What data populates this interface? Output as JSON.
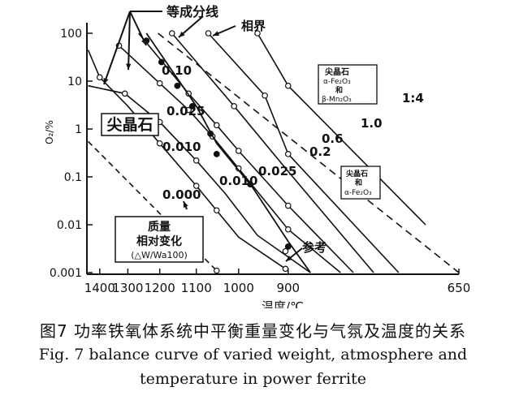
{
  "chart_data": {
    "type": "line",
    "title": "",
    "xlabel": "温度/℃",
    "ylabel": "O₂/%",
    "x_scale": "reciprocal",
    "y_scale": "log",
    "xlim": [
      1450,
      650
    ],
    "ylim": [
      0.001,
      100
    ],
    "grid": false,
    "x_ticks": [
      "1400",
      "1300",
      "1200",
      "1100",
      "1000",
      "900",
      "650"
    ],
    "y_ticks": [
      "0.001",
      "0.01",
      "0.1",
      "1",
      "10",
      "100"
    ],
    "series": [
      {
        "name": "0.000",
        "kind": "iso-weight (dashed)",
        "points": [
          [
            1445,
            0.55
          ],
          [
            1050,
            0.0011
          ]
        ]
      },
      {
        "name": "0.010",
        "kind": "iso-weight",
        "points": [
          [
            1445,
            45
          ],
          [
            1400,
            12
          ],
          [
            1300,
            3
          ],
          [
            1200,
            0.5
          ],
          [
            1100,
            0.065
          ],
          [
            1000,
            0.0055
          ],
          [
            905,
            0.0012
          ]
        ]
      },
      {
        "name": "0.025",
        "kind": "iso-weight",
        "points": [
          [
            1445,
            8
          ],
          [
            1310,
            5.5
          ],
          [
            1200,
            1.4
          ],
          [
            1100,
            0.22
          ],
          [
            1030,
            0.045
          ],
          [
            960,
            0.006
          ],
          [
            860,
            0.001
          ]
        ]
      },
      {
        "name": "0.10",
        "kind": "iso-weight",
        "points": [
          [
            1330,
            55
          ],
          [
            1200,
            9
          ],
          [
            1120,
            2.5
          ],
          [
            1060,
            0.7
          ],
          [
            1000,
            0.15
          ],
          [
            900,
            0.008
          ],
          [
            810,
            0.001
          ]
        ]
      },
      {
        "name": "0.2",
        "kind": "iso-weight",
        "points": [
          [
            1265,
            100
          ],
          [
            1120,
            5.5
          ],
          [
            1050,
            1.2
          ],
          [
            1000,
            0.35
          ],
          [
            900,
            0.025
          ],
          [
            790,
            0.001
          ]
        ]
      },
      {
        "name": "0.6",
        "kind": "iso-weight",
        "points": [
          [
            1165,
            100
          ],
          [
            1010,
            3
          ],
          [
            900,
            0.13
          ],
          [
            760,
            0.001
          ]
        ]
      },
      {
        "name": "1.0",
        "kind": "iso-weight",
        "points": [
          [
            1070,
            100
          ],
          [
            945,
            5
          ],
          [
            900,
            0.3
          ],
          [
            725,
            0.001
          ]
        ]
      },
      {
        "name": "1:4",
        "kind": "iso-weight",
        "points": [
          [
            960,
            100
          ],
          [
            900,
            8
          ],
          [
            690,
            0.01
          ]
        ]
      },
      {
        "name": "相界",
        "kind": "phase boundary (dashed)",
        "points": [
          [
            1205,
            100
          ],
          [
            650,
            0.001
          ]
        ]
      },
      {
        "name": "参考",
        "kind": "phase boundary (solid)",
        "points": [
          [
            1240,
            100
          ],
          [
            1100,
            3
          ],
          [
            1050,
            0.5
          ],
          [
            970,
            0.06
          ],
          [
            900,
            0.0045
          ],
          [
            860,
            0.001
          ]
        ]
      }
    ],
    "annotations": {
      "iso_lines": "等成分线",
      "phase_boundary": "相界",
      "spinel": "尖晶石",
      "region_upper_1": "尖晶石",
      "region_upper_2": "α-Fe₂O₃",
      "region_upper_3": "和",
      "region_upper_4": "β-Mn₂O₃",
      "region_lower_1": "尖晶石",
      "region_lower_2": "和",
      "region_lower_3": "α-Fe₂O₃",
      "legend_box_1": "质量",
      "legend_box_2": "相对变化",
      "legend_box_3": "(△W/Wa100)",
      "reference": "参考"
    }
  },
  "caption": {
    "zh": "图7   功率铁氧体系统中平衡重量变化与气氛及温度的关系",
    "en_line1": "Fig. 7  balance curve of varied weight, atmosphere and",
    "en_line2": "temperature in power ferrite"
  }
}
